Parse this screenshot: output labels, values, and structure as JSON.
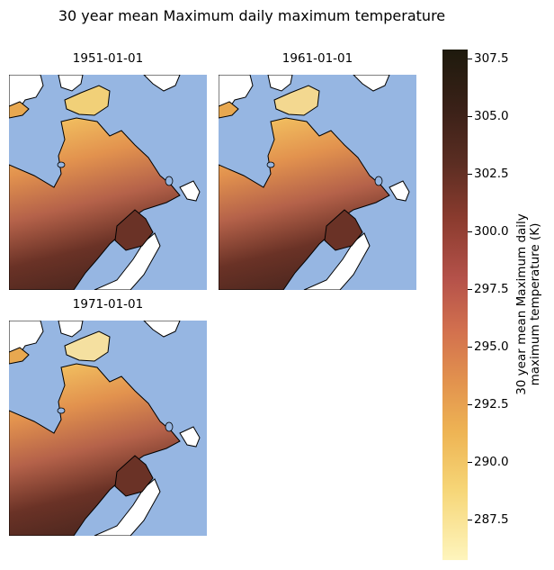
{
  "title": "30 year mean Maximum daily maximum temperature",
  "panels": [
    {
      "label": "1951-01-01"
    },
    {
      "label": "1961-01-01"
    },
    {
      "label": "1971-01-01"
    }
  ],
  "colorbar": {
    "label_line1": "30 year mean Maximum daily",
    "label_line2": "maximum temperature (K)",
    "range": [
      286.0,
      308.0
    ],
    "ticks": [
      "307.5",
      "305.0",
      "302.5",
      "300.0",
      "297.5",
      "295.0",
      "292.5",
      "290.0",
      "287.5"
    ],
    "colormap": [
      "#fef5bd",
      "#f6d576",
      "#eeb454",
      "#e2924e",
      "#d2704e",
      "#b5524a",
      "#8a3b2e",
      "#5a2d22",
      "#3b2118",
      "#1e1a0d"
    ]
  },
  "colors": {
    "ocean": "#96b6e2",
    "land_outside": "#ffffff",
    "coastline": "#000000"
  }
}
